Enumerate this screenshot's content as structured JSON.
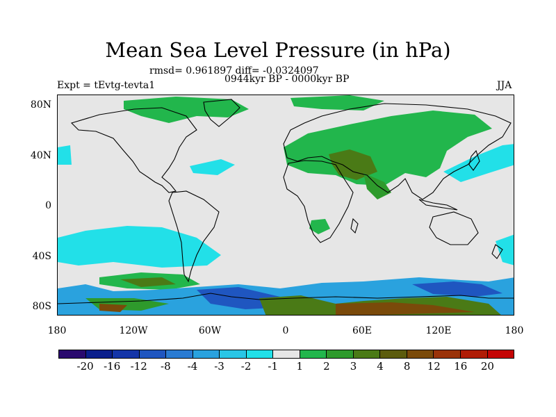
{
  "figure": {
    "title": "Mean Sea Level Pressure (in hPa)",
    "stats": "rmsd= 0.961897 diff= -0.0324097",
    "left_label": "Expt = tEvtg-tevta1",
    "center_label": "0944kyr BP - 0000kyr BP",
    "right_label": "JJA"
  },
  "axes": {
    "lat_labels": [
      "80N",
      "40N",
      "0",
      "40S",
      "80S"
    ],
    "lon_labels": [
      "180",
      "120W",
      "60W",
      "0",
      "60E",
      "120E",
      "180"
    ]
  },
  "colorbar": {
    "colors": [
      "#2a0a6e",
      "#0b1f8c",
      "#1435a8",
      "#1f56c0",
      "#2a7bd2",
      "#2aa2de",
      "#29c6e6",
      "#22e0e8",
      "#e6e6e6",
      "#22b64c",
      "#2e9a2c",
      "#4a7a16",
      "#5c5c0e",
      "#7a4a0a",
      "#9a3208",
      "#b01c06",
      "#c40404"
    ],
    "labels": [
      "-20",
      "-16",
      "-12",
      "-8",
      "-4",
      "-3",
      "-2",
      "-1",
      "1",
      "2",
      "3",
      "4",
      "8",
      "12",
      "16",
      "20"
    ]
  },
  "chart_data": {
    "type": "heatmap",
    "title": "Mean Sea Level Pressure (in hPa)",
    "units": "hPa",
    "x_range": [
      -180,
      180
    ],
    "y_range": [
      -90,
      90
    ],
    "levels": [
      -20,
      -16,
      -12,
      -8,
      -4,
      -3,
      -2,
      -1,
      1,
      2,
      3,
      4,
      8,
      12,
      16,
      20
    ],
    "season": "JJA",
    "rmsd": 0.961897,
    "diff": -0.0324097
  }
}
